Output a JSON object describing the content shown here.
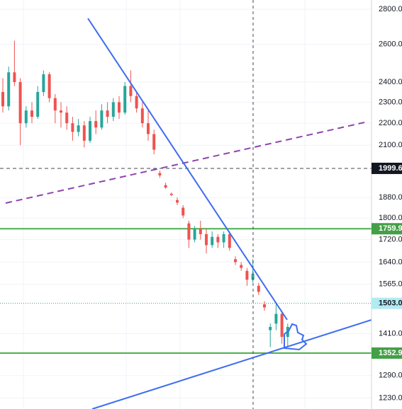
{
  "chart_data": {
    "type": "candlestick",
    "log_scale": true,
    "ylim": [
      1202,
      2855
    ],
    "yticks": [
      {
        "value": 2800,
        "label": "2800.0"
      },
      {
        "value": 2600,
        "label": "2600.0"
      },
      {
        "value": 2400,
        "label": "2400.0"
      },
      {
        "value": 2300,
        "label": "2300.0"
      },
      {
        "value": 2200,
        "label": "2200.0"
      },
      {
        "value": 2100,
        "label": "2100.0"
      },
      {
        "value": 1880,
        "label": "1880.0"
      },
      {
        "value": 1800,
        "label": "1800.0"
      },
      {
        "value": 1720,
        "label": "1720.0"
      },
      {
        "value": 1640,
        "label": "1640.0"
      },
      {
        "value": 1565,
        "label": "1565.0"
      },
      {
        "value": 1410,
        "label": "1410.0"
      },
      {
        "value": 1290,
        "label": "1290.0"
      },
      {
        "value": 1230,
        "label": "1230.0"
      }
    ],
    "grid": true,
    "up_color": "#26a69a",
    "down_color": "#ef5350",
    "candles": {
      "open": [
        2350,
        2280,
        2450,
        2400,
        2200,
        2260,
        2230,
        2350,
        2440,
        2320,
        2260,
        2250,
        2200,
        2160,
        2190,
        2120,
        2210,
        2180,
        2260,
        2230,
        2300,
        2250,
        2380,
        2330,
        2270,
        2200,
        2150,
        1980,
        1930,
        1895,
        1870,
        1840,
        1780,
        1720,
        1760,
        1740,
        1700,
        1730,
        1710,
        1740,
        1650,
        1630,
        1610,
        1580,
        1560,
        1500,
        1420,
        1440,
        1470,
        1400
      ],
      "high": [
        2420,
        2480,
        2620,
        2420,
        2280,
        2300,
        2380,
        2460,
        2450,
        2340,
        2300,
        2280,
        2230,
        2220,
        2210,
        2230,
        2260,
        2290,
        2300,
        2320,
        2330,
        2400,
        2460,
        2350,
        2300,
        2260,
        2170,
        1990,
        1940,
        1900,
        1880,
        1850,
        1790,
        1770,
        1790,
        1760,
        1750,
        1740,
        1750,
        1750,
        1660,
        1640,
        1620,
        1650,
        1570,
        1510,
        1440,
        1500,
        1480,
        1440
      ],
      "low": [
        2250,
        2260,
        2380,
        2100,
        2180,
        2200,
        2220,
        2330,
        2300,
        2200,
        2180,
        2170,
        2120,
        2140,
        2090,
        2110,
        2150,
        2170,
        2200,
        2210,
        2220,
        2240,
        2300,
        2250,
        2180,
        2120,
        2060,
        1960,
        1915,
        1885,
        1850,
        1800,
        1690,
        1710,
        1720,
        1670,
        1690,
        1690,
        1690,
        1680,
        1630,
        1610,
        1560,
        1570,
        1530,
        1480,
        1370,
        1420,
        1380,
        1370
      ],
      "close": [
        2280,
        2450,
        2400,
        2200,
        2260,
        2230,
        2350,
        2440,
        2320,
        2260,
        2250,
        2200,
        2160,
        2190,
        2120,
        2210,
        2180,
        2260,
        2230,
        2300,
        2250,
        2380,
        2330,
        2270,
        2200,
        2150,
        2080,
        1970,
        1920,
        1890,
        1860,
        1810,
        1720,
        1760,
        1740,
        1700,
        1730,
        1710,
        1740,
        1690,
        1640,
        1620,
        1580,
        1600,
        1540,
        1490,
        1430,
        1470,
        1400,
        1430
      ]
    },
    "price_markers": [
      {
        "value": 1999.6,
        "label": "1999.6",
        "color": "#131722",
        "text_color": "#ffffff",
        "line": "dashed",
        "line_color": "#434651"
      },
      {
        "value": 1759.9,
        "label": "1759.9",
        "color": "#43a047",
        "text_color": "#ffffff",
        "line": "solid",
        "line_color": "#4caf50"
      },
      {
        "value": 1503.0,
        "label": "1503.0",
        "color": "#b2ebf2",
        "text_color": "#131722",
        "line": "dotted",
        "line_color": "#26a69a"
      },
      {
        "value": 1352.9,
        "label": "1352.9",
        "color": "#43a047",
        "text_color": "#ffffff",
        "line": "solid",
        "line_color": "#4caf50"
      }
    ]
  }
}
